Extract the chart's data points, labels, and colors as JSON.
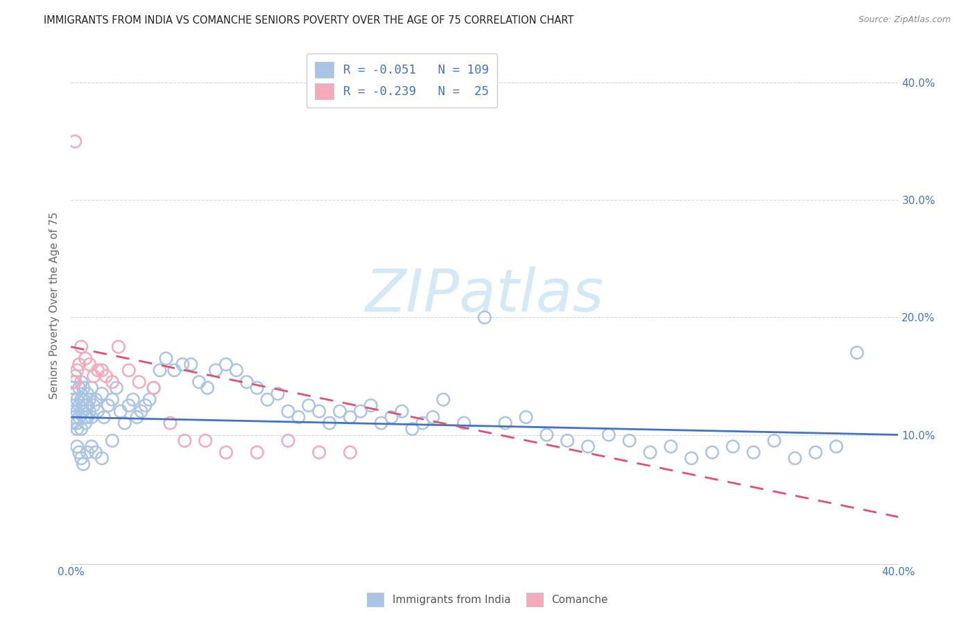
{
  "title": "IMMIGRANTS FROM INDIA VS COMANCHE SENIORS POVERTY OVER THE AGE OF 75 CORRELATION CHART",
  "source": "Source: ZipAtlas.com",
  "ylabel": "Seniors Poverty Over the Age of 75",
  "xlim": [
    0.0,
    0.4
  ],
  "ylim": [
    -0.01,
    0.43
  ],
  "yticks": [
    0.1,
    0.2,
    0.3,
    0.4
  ],
  "ytick_labels": [
    "10.0%",
    "20.0%",
    "30.0%",
    "40.0%"
  ],
  "india_R": -0.051,
  "india_N": 109,
  "comanche_R": -0.239,
  "comanche_N": 25,
  "india_color": "#aac4e5",
  "comanche_color": "#f4aabb",
  "india_line_color": "#4472c4",
  "comanche_line_color": "#e05070",
  "axis_tick_color": "#4472c4",
  "grid_color": "#d8d8d8",
  "watermark_color": "#d5e8f5",
  "india_x": [
    0.001,
    0.001,
    0.001,
    0.001,
    0.002,
    0.002,
    0.002,
    0.002,
    0.002,
    0.003,
    0.003,
    0.003,
    0.003,
    0.004,
    0.004,
    0.004,
    0.005,
    0.005,
    0.005,
    0.005,
    0.006,
    0.006,
    0.006,
    0.007,
    0.007,
    0.007,
    0.008,
    0.008,
    0.008,
    0.009,
    0.009,
    0.01,
    0.01,
    0.011,
    0.012,
    0.013,
    0.015,
    0.016,
    0.018,
    0.02,
    0.022,
    0.024,
    0.026,
    0.028,
    0.03,
    0.032,
    0.034,
    0.036,
    0.038,
    0.04,
    0.043,
    0.046,
    0.05,
    0.054,
    0.058,
    0.062,
    0.066,
    0.07,
    0.075,
    0.08,
    0.085,
    0.09,
    0.095,
    0.1,
    0.105,
    0.11,
    0.115,
    0.12,
    0.125,
    0.13,
    0.135,
    0.14,
    0.145,
    0.15,
    0.155,
    0.16,
    0.165,
    0.17,
    0.175,
    0.18,
    0.19,
    0.2,
    0.21,
    0.22,
    0.23,
    0.24,
    0.25,
    0.26,
    0.27,
    0.28,
    0.29,
    0.3,
    0.31,
    0.32,
    0.33,
    0.34,
    0.35,
    0.36,
    0.37,
    0.38,
    0.003,
    0.004,
    0.005,
    0.006,
    0.008,
    0.01,
    0.012,
    0.015,
    0.02
  ],
  "india_y": [
    0.13,
    0.12,
    0.11,
    0.14,
    0.135,
    0.125,
    0.115,
    0.15,
    0.145,
    0.12,
    0.11,
    0.13,
    0.105,
    0.14,
    0.125,
    0.115,
    0.13,
    0.12,
    0.105,
    0.145,
    0.14,
    0.12,
    0.13,
    0.115,
    0.125,
    0.11,
    0.135,
    0.115,
    0.125,
    0.13,
    0.12,
    0.14,
    0.115,
    0.125,
    0.13,
    0.12,
    0.135,
    0.115,
    0.125,
    0.13,
    0.14,
    0.12,
    0.11,
    0.125,
    0.13,
    0.115,
    0.12,
    0.125,
    0.13,
    0.14,
    0.155,
    0.165,
    0.155,
    0.16,
    0.16,
    0.145,
    0.14,
    0.155,
    0.16,
    0.155,
    0.145,
    0.14,
    0.13,
    0.135,
    0.12,
    0.115,
    0.125,
    0.12,
    0.11,
    0.12,
    0.115,
    0.12,
    0.125,
    0.11,
    0.115,
    0.12,
    0.105,
    0.11,
    0.115,
    0.13,
    0.11,
    0.2,
    0.11,
    0.115,
    0.1,
    0.095,
    0.09,
    0.1,
    0.095,
    0.085,
    0.09,
    0.08,
    0.085,
    0.09,
    0.085,
    0.095,
    0.08,
    0.085,
    0.09,
    0.17,
    0.09,
    0.085,
    0.08,
    0.075,
    0.085,
    0.09,
    0.085,
    0.08,
    0.095
  ],
  "comanche_x": [
    0.001,
    0.002,
    0.003,
    0.004,
    0.005,
    0.007,
    0.009,
    0.011,
    0.013,
    0.015,
    0.017,
    0.02,
    0.023,
    0.028,
    0.033,
    0.04,
    0.048,
    0.055,
    0.065,
    0.075,
    0.09,
    0.105,
    0.12,
    0.135,
    0.002
  ],
  "comanche_y": [
    0.145,
    0.145,
    0.155,
    0.16,
    0.175,
    0.165,
    0.16,
    0.15,
    0.155,
    0.155,
    0.15,
    0.145,
    0.175,
    0.155,
    0.145,
    0.14,
    0.11,
    0.095,
    0.095,
    0.085,
    0.085,
    0.095,
    0.085,
    0.085,
    0.35
  ],
  "india_line_x0": 0.0,
  "india_line_x1": 0.4,
  "india_line_y0": 0.115,
  "india_line_y1": 0.1,
  "comanche_line_x0": 0.0,
  "comanche_line_x1": 0.4,
  "comanche_line_y0": 0.175,
  "comanche_line_y1": 0.03
}
